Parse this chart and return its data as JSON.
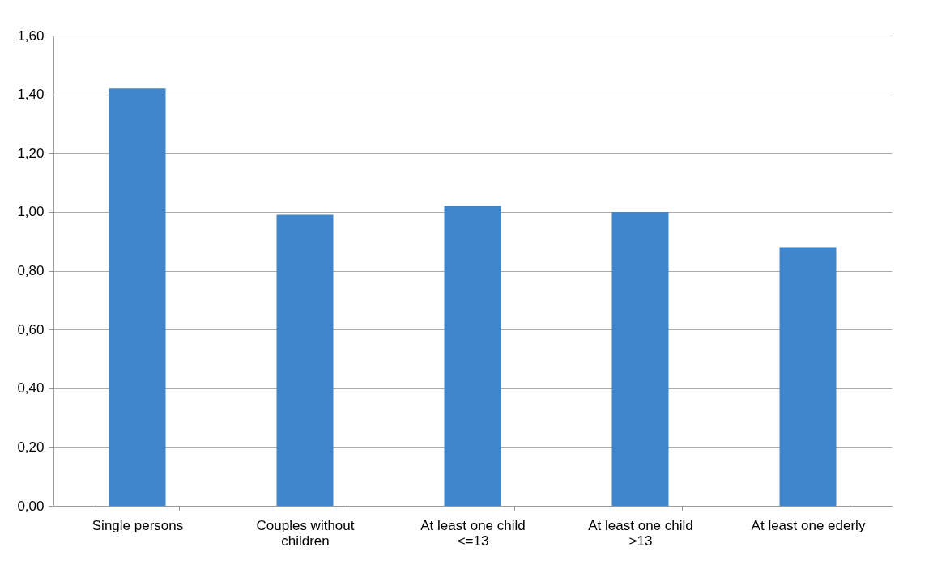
{
  "chart_data": {
    "type": "bar",
    "categories": [
      "Single persons",
      "Couples without children",
      "At least one child <=13",
      "At least one child >13",
      "At least one ederly"
    ],
    "values": [
      1.42,
      0.99,
      1.02,
      1.0,
      0.88
    ],
    "color": "#3f86cc",
    "ylim": [
      0,
      1.6
    ],
    "yticks": [
      {
        "value": 0,
        "label": "0,00"
      },
      {
        "value": 0.2,
        "label": "0,20"
      },
      {
        "value": 0.4,
        "label": "0,40"
      },
      {
        "value": 0.6,
        "label": "0,60"
      },
      {
        "value": 0.8,
        "label": "0,80"
      },
      {
        "value": 1,
        "label": "1,00"
      },
      {
        "value": 1.2,
        "label": "1,20"
      },
      {
        "value": 1.4,
        "label": "1,40"
      },
      {
        "value": 1.6,
        "label": "1,60"
      }
    ],
    "grid": "y"
  }
}
